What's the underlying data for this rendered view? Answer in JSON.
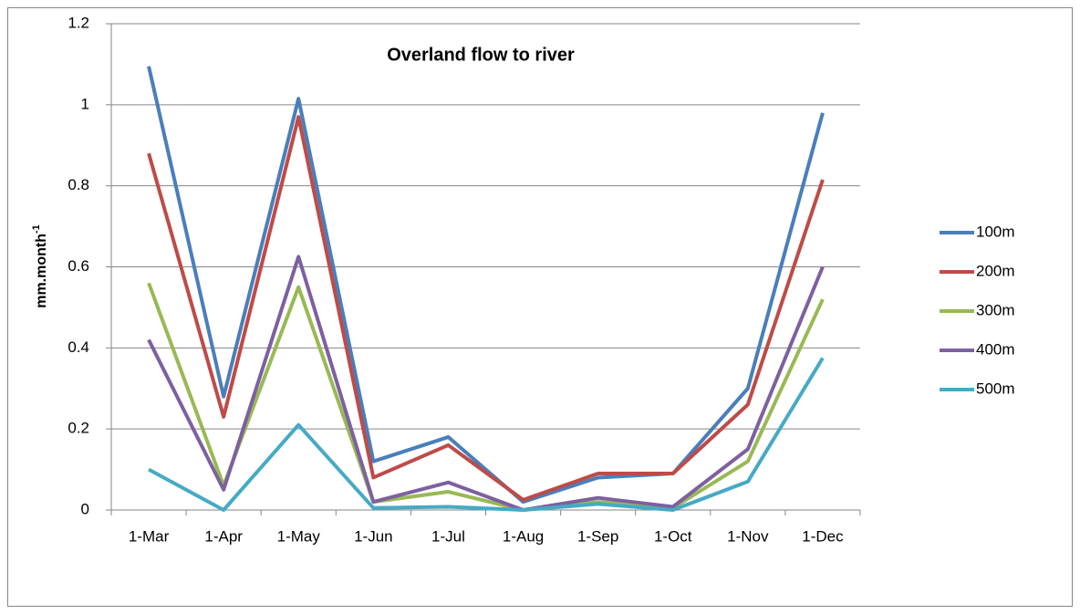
{
  "chart_data": {
    "type": "line",
    "title": "Overland flow to river",
    "ylabel": {
      "text": "mm.month",
      "superscript": "-1"
    },
    "categories": [
      "1-Mar",
      "1-Apr",
      "1-May",
      "1-Jun",
      "1-Jul",
      "1-Aug",
      "1-Sep",
      "1-Oct",
      "1-Nov",
      "1-Dec"
    ],
    "series": [
      {
        "name": "100m",
        "color": "#4a7ebb",
        "values": [
          1.095,
          0.28,
          1.015,
          0.12,
          0.18,
          0.02,
          0.08,
          0.09,
          0.3,
          0.98
        ]
      },
      {
        "name": "200m",
        "color": "#be4b48",
        "values": [
          0.88,
          0.23,
          0.97,
          0.08,
          0.16,
          0.025,
          0.09,
          0.09,
          0.26,
          0.815
        ]
      },
      {
        "name": "300m",
        "color": "#98b954",
        "values": [
          0.56,
          0.06,
          0.55,
          0.02,
          0.045,
          0.0,
          0.02,
          0.005,
          0.12,
          0.52
        ]
      },
      {
        "name": "400m",
        "color": "#7d60a0",
        "values": [
          0.42,
          0.05,
          0.625,
          0.02,
          0.068,
          0.0,
          0.03,
          0.008,
          0.15,
          0.6
        ]
      },
      {
        "name": "500m",
        "color": "#46aac5",
        "values": [
          0.1,
          0.0,
          0.21,
          0.005,
          0.008,
          0.0,
          0.015,
          0.0,
          0.07,
          0.375
        ]
      }
    ],
    "ylim": [
      0,
      1.2
    ],
    "yticks": [
      0,
      0.2,
      0.4,
      0.6,
      0.8,
      1,
      1.2
    ],
    "grid": true,
    "legend": "right"
  }
}
